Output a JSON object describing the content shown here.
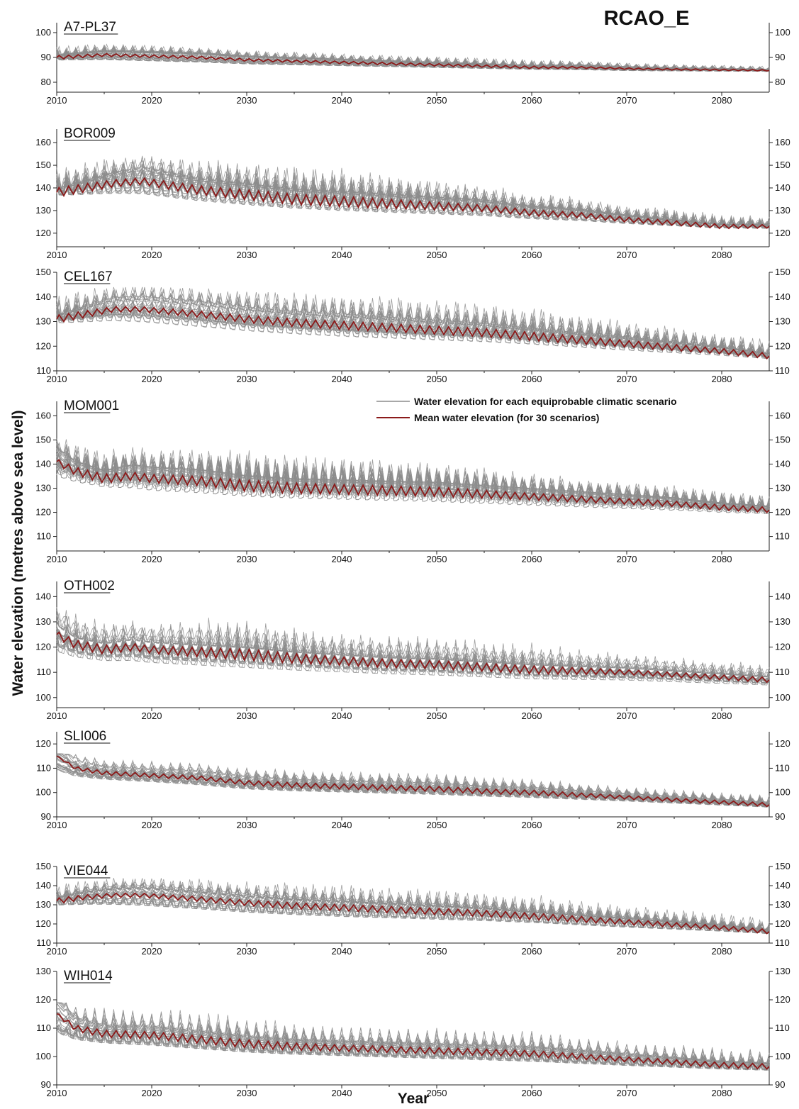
{
  "figure": {
    "heading": "RCAO_E",
    "y_axis_title": "Water elevation (metres above sea level)",
    "x_axis_title": "Year",
    "legend": [
      {
        "label": "Water elevation for each equiprobable climatic scenario",
        "color": "#8c8c8c"
      },
      {
        "label": "Mean water elevation (for 30 scenarios)",
        "color": "#8b1a1a"
      }
    ],
    "colors": {
      "scenario": "#8c8c8c",
      "mean": "#8b1a1a",
      "axis": "#222222"
    }
  },
  "chart_data": [
    {
      "type": "line",
      "title": "A7-PL37",
      "xlim": [
        2010,
        2085
      ],
      "xticks": [
        2010,
        2020,
        2030,
        2040,
        2050,
        2060,
        2070,
        2080
      ],
      "ylim": [
        76,
        104
      ],
      "yticks": [
        80,
        90,
        100
      ],
      "n_scenarios": 30,
      "series": [
        {
          "role": "mean",
          "x": [
            2010,
            2015,
            2020,
            2025,
            2030,
            2035,
            2040,
            2045,
            2050,
            2055,
            2060,
            2065,
            2070,
            2075,
            2080,
            2085
          ],
          "y": [
            90,
            91,
            90.5,
            90,
            89,
            88.5,
            88,
            87.5,
            87,
            86.5,
            86,
            86,
            85.5,
            85.2,
            85,
            84.8
          ]
        }
      ],
      "scenario_range": {
        "x": [
          2010,
          2020,
          2030,
          2040,
          2050,
          2060,
          2070,
          2085
        ],
        "low": [
          88,
          87,
          86,
          85.5,
          85,
          84.5,
          84,
          84
        ],
        "high": [
          96,
          95,
          93,
          92,
          91,
          90,
          88,
          87
        ]
      }
    },
    {
      "type": "line",
      "title": "BOR009",
      "xlim": [
        2010,
        2085
      ],
      "xticks": [
        2010,
        2020,
        2030,
        2040,
        2050,
        2060,
        2070,
        2080
      ],
      "ylim": [
        114,
        166
      ],
      "yticks": [
        120,
        130,
        140,
        150,
        160
      ],
      "n_scenarios": 30,
      "series": [
        {
          "role": "mean",
          "x": [
            2010,
            2013,
            2016,
            2019,
            2022,
            2025,
            2030,
            2035,
            2040,
            2045,
            2050,
            2055,
            2060,
            2065,
            2070,
            2075,
            2080,
            2085
          ],
          "y": [
            138,
            140,
            142,
            143,
            141,
            139,
            137,
            135,
            134,
            133,
            132,
            131,
            129,
            128,
            126,
            124.5,
            123,
            123
          ]
        }
      ],
      "scenario_range": {
        "x": [
          2010,
          2020,
          2030,
          2040,
          2050,
          2060,
          2070,
          2085
        ],
        "low": [
          135,
          130,
          127,
          125,
          124,
          123,
          122,
          121
        ],
        "high": [
          155,
          155,
          155,
          153,
          146,
          140,
          135,
          129
        ]
      }
    },
    {
      "type": "line",
      "title": "CEL167",
      "xlim": [
        2010,
        2085
      ],
      "xticks": [
        2010,
        2020,
        2030,
        2040,
        2050,
        2060,
        2070,
        2080
      ],
      "ylim": [
        110,
        150
      ],
      "yticks": [
        110,
        120,
        130,
        140,
        150
      ],
      "n_scenarios": 30,
      "series": [
        {
          "role": "mean",
          "x": [
            2010,
            2013,
            2016,
            2019,
            2022,
            2025,
            2030,
            2035,
            2040,
            2045,
            2050,
            2055,
            2060,
            2065,
            2070,
            2075,
            2080,
            2085
          ],
          "y": [
            131,
            133,
            135,
            135,
            134,
            133,
            131,
            129.5,
            128.5,
            127.5,
            126.5,
            125.5,
            124,
            122.5,
            121,
            119.5,
            118,
            116
          ]
        }
      ],
      "scenario_range": {
        "x": [
          2010,
          2020,
          2030,
          2040,
          2050,
          2060,
          2070,
          2085
        ],
        "low": [
          128,
          125,
          122,
          120,
          119,
          118,
          116,
          114
        ],
        "high": [
          144,
          144,
          143,
          142,
          140,
          138,
          132,
          125
        ]
      }
    },
    {
      "type": "line",
      "title": "MOM001",
      "xlim": [
        2010,
        2085
      ],
      "xticks": [
        2010,
        2020,
        2030,
        2040,
        2050,
        2060,
        2070,
        2080
      ],
      "ylim": [
        104,
        166
      ],
      "yticks": [
        110,
        120,
        130,
        140,
        150,
        160
      ],
      "n_scenarios": 30,
      "series": [
        {
          "role": "mean",
          "x": [
            2010,
            2012,
            2015,
            2018,
            2020,
            2025,
            2030,
            2035,
            2040,
            2045,
            2050,
            2055,
            2060,
            2065,
            2070,
            2075,
            2080,
            2085
          ],
          "y": [
            141,
            137,
            134,
            135,
            134,
            133,
            131,
            130,
            129.5,
            129,
            128.5,
            127.5,
            126.5,
            125.5,
            124.5,
            123.5,
            122,
            121
          ]
        }
      ],
      "scenario_range": {
        "x": [
          2010,
          2020,
          2030,
          2040,
          2050,
          2060,
          2070,
          2085
        ],
        "low": [
          130,
          125,
          123,
          122,
          121,
          120,
          119,
          118
        ],
        "high": [
          151,
          148,
          150,
          146,
          144,
          138,
          134,
          130
        ]
      }
    },
    {
      "type": "line",
      "title": "OTH002",
      "xlim": [
        2010,
        2085
      ],
      "xticks": [
        2010,
        2020,
        2030,
        2040,
        2050,
        2060,
        2070,
        2080
      ],
      "ylim": [
        96,
        146
      ],
      "yticks": [
        100,
        110,
        120,
        130,
        140
      ],
      "n_scenarios": 30,
      "series": [
        {
          "role": "mean",
          "x": [
            2010,
            2012,
            2015,
            2018,
            2020,
            2025,
            2030,
            2035,
            2040,
            2045,
            2050,
            2055,
            2060,
            2065,
            2070,
            2075,
            2080,
            2085
          ],
          "y": [
            125,
            121,
            119,
            120,
            119,
            118,
            117,
            115.5,
            114.5,
            113.5,
            113,
            112,
            111,
            110.5,
            110,
            109,
            108,
            107
          ]
        }
      ],
      "scenario_range": {
        "x": [
          2010,
          2020,
          2030,
          2040,
          2050,
          2060,
          2070,
          2085
        ],
        "low": [
          112,
          109,
          107,
          106,
          105,
          104,
          104,
          103
        ],
        "high": [
          136,
          131,
          135,
          128,
          126,
          124,
          118,
          115
        ]
      }
    },
    {
      "type": "line",
      "title": "SLI006",
      "xlim": [
        2010,
        2085
      ],
      "xticks": [
        2010,
        2020,
        2030,
        2040,
        2050,
        2060,
        2070,
        2080
      ],
      "ylim": [
        90,
        125
      ],
      "yticks": [
        90,
        100,
        110,
        120
      ],
      "n_scenarios": 30,
      "series": [
        {
          "role": "mean",
          "x": [
            2010,
            2012,
            2015,
            2020,
            2025,
            2030,
            2035,
            2040,
            2045,
            2050,
            2055,
            2060,
            2065,
            2070,
            2075,
            2080,
            2085
          ],
          "y": [
            115,
            110,
            108,
            107,
            106,
            104,
            103,
            102.5,
            102,
            101.5,
            100.5,
            100,
            99,
            98,
            97,
            96,
            95
          ]
        }
      ],
      "scenario_range": {
        "x": [
          2010,
          2020,
          2030,
          2040,
          2050,
          2060,
          2070,
          2085
        ],
        "low": [
          104,
          102,
          99,
          98,
          97,
          96,
          95,
          93
        ],
        "high": [
          116,
          114,
          112,
          111,
          110,
          108,
          104,
          101
        ]
      }
    },
    {
      "type": "line",
      "title": "VIE044",
      "xlim": [
        2010,
        2085
      ],
      "xticks": [
        2010,
        2020,
        2030,
        2040,
        2050,
        2060,
        2070,
        2080
      ],
      "ylim": [
        110,
        150
      ],
      "yticks": [
        110,
        120,
        130,
        140,
        150
      ],
      "n_scenarios": 30,
      "series": [
        {
          "role": "mean",
          "x": [
            2010,
            2013,
            2016,
            2019,
            2022,
            2025,
            2030,
            2035,
            2040,
            2045,
            2050,
            2055,
            2060,
            2065,
            2070,
            2075,
            2080,
            2085
          ],
          "y": [
            132,
            134,
            135,
            135,
            134,
            133,
            131,
            129.5,
            128.5,
            127.5,
            126.5,
            125.5,
            124,
            122.5,
            121,
            119.5,
            118,
            116
          ]
        }
      ],
      "scenario_range": {
        "x": [
          2010,
          2020,
          2030,
          2040,
          2050,
          2060,
          2070,
          2085
        ],
        "low": [
          128,
          125,
          122,
          120,
          119,
          118,
          116,
          114
        ],
        "high": [
          144,
          144,
          143,
          142,
          140,
          138,
          132,
          125
        ]
      }
    },
    {
      "type": "line",
      "title": "WIH014",
      "xlim": [
        2010,
        2085
      ],
      "xticks": [
        2010,
        2020,
        2030,
        2040,
        2050,
        2060,
        2070,
        2080
      ],
      "ylim": [
        90,
        130
      ],
      "yticks": [
        90,
        100,
        110,
        120,
        130
      ],
      "n_scenarios": 30,
      "series": [
        {
          "role": "mean",
          "x": [
            2010,
            2012,
            2015,
            2020,
            2025,
            2030,
            2035,
            2040,
            2045,
            2050,
            2055,
            2060,
            2065,
            2070,
            2075,
            2080,
            2085
          ],
          "y": [
            115,
            110,
            108,
            107.5,
            106,
            104.5,
            103.5,
            103,
            102.5,
            102,
            101.5,
            101,
            100,
            99,
            98,
            97,
            96.5
          ]
        }
      ],
      "scenario_range": {
        "x": [
          2010,
          2020,
          2030,
          2040,
          2050,
          2060,
          2070,
          2085
        ],
        "low": [
          103,
          101,
          99,
          98,
          97,
          96,
          95,
          94
        ],
        "high": [
          119,
          118,
          116,
          112,
          111,
          110,
          106,
          104
        ]
      }
    }
  ]
}
